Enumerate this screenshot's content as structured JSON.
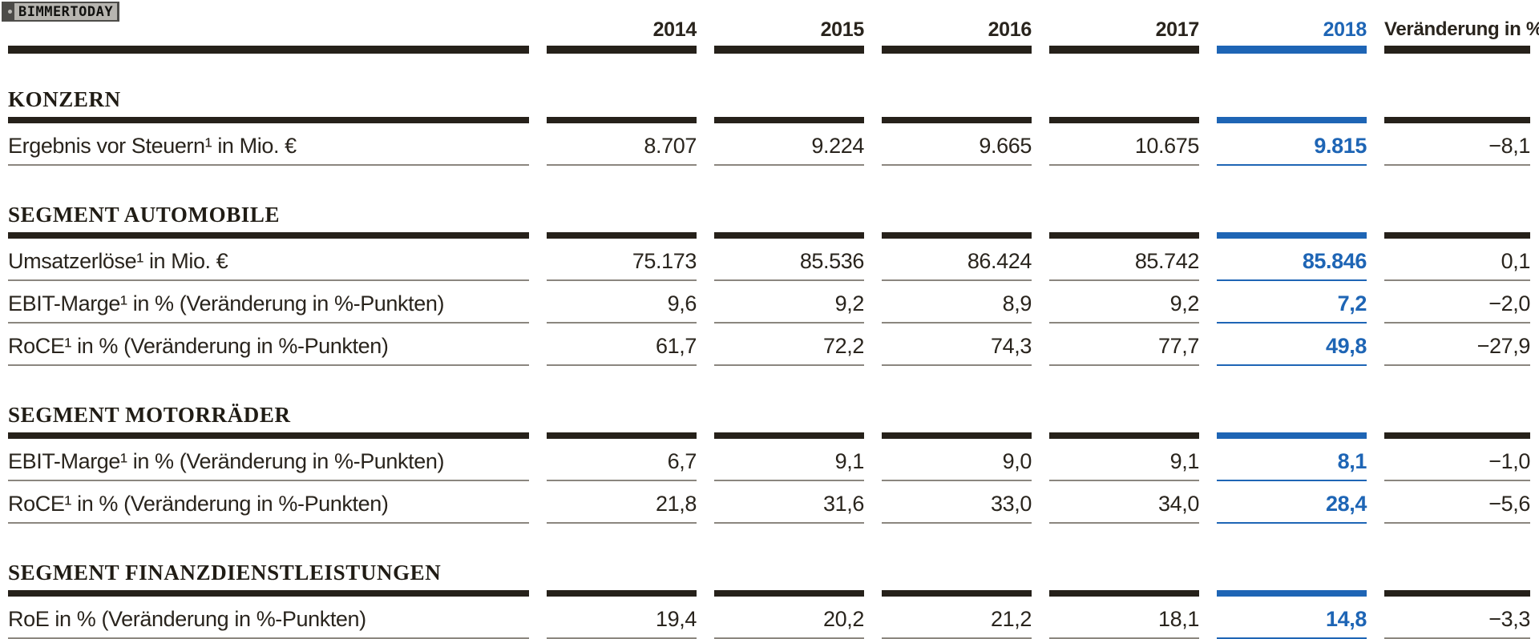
{
  "watermark": {
    "text": "BIMMERTODAY"
  },
  "colors": {
    "accent_blue": "#1e65b5",
    "bar_black": "#26211a",
    "rule_grey": "#8b867f",
    "text_dark": "#29241d"
  },
  "header": {
    "years": [
      "2014",
      "2015",
      "2016",
      "2017",
      "2018"
    ],
    "highlight_year": "2018",
    "change_label": "Veränderung in %"
  },
  "sections": [
    {
      "title": "KONZERN",
      "rows": [
        {
          "label": "Ergebnis vor Steuern¹ in Mio. €",
          "values": [
            "8.707",
            "9.224",
            "9.665",
            "10.675",
            "9.815"
          ],
          "change": "−8,1"
        }
      ]
    },
    {
      "title": "SEGMENT AUTOMOBILE",
      "rows": [
        {
          "label": "Umsatzerlöse¹ in Mio. €",
          "values": [
            "75.173",
            "85.536",
            "86.424",
            "85.742",
            "85.846"
          ],
          "change": "0,1"
        },
        {
          "label": "EBIT-Marge¹ in % (Veränderung in %-Punkten)",
          "values": [
            "9,6",
            "9,2",
            "8,9",
            "9,2",
            "7,2"
          ],
          "change": "−2,0"
        },
        {
          "label": "RoCE¹ in % (Veränderung in %-Punkten)",
          "values": [
            "61,7",
            "72,2",
            "74,3",
            "77,7",
            "49,8"
          ],
          "change": "−27,9"
        }
      ]
    },
    {
      "title": "SEGMENT MOTORRÄDER",
      "rows": [
        {
          "label": "EBIT-Marge¹ in % (Veränderung in %-Punkten)",
          "values": [
            "6,7",
            "9,1",
            "9,0",
            "9,1",
            "8,1"
          ],
          "change": "−1,0"
        },
        {
          "label": "RoCE¹ in % (Veränderung in %-Punkten)",
          "values": [
            "21,8",
            "31,6",
            "33,0",
            "34,0",
            "28,4"
          ],
          "change": "−5,6"
        }
      ]
    },
    {
      "title": "SEGMENT FINANZDIENSTLEISTUNGEN",
      "rows": [
        {
          "label": "RoE in % (Veränderung in %-Punkten)",
          "values": [
            "19,4",
            "20,2",
            "21,2",
            "18,1",
            "14,8"
          ],
          "change": "−3,3"
        }
      ]
    }
  ],
  "chart_data": {
    "type": "table",
    "columns": [
      "",
      "2014",
      "2015",
      "2016",
      "2017",
      "2018",
      "Veränderung in %"
    ],
    "rows": [
      [
        "KONZERN",
        "",
        "",
        "",
        "",
        "",
        ""
      ],
      [
        "Ergebnis vor Steuern¹ in Mio. €",
        "8.707",
        "9.224",
        "9.665",
        "10.675",
        "9.815",
        "−8,1"
      ],
      [
        "SEGMENT AUTOMOBILE",
        "",
        "",
        "",
        "",
        "",
        ""
      ],
      [
        "Umsatzerlöse¹ in Mio. €",
        "75.173",
        "85.536",
        "86.424",
        "85.742",
        "85.846",
        "0,1"
      ],
      [
        "EBIT-Marge¹ in % (Veränderung in %-Punkten)",
        "9,6",
        "9,2",
        "8,9",
        "9,2",
        "7,2",
        "−2,0"
      ],
      [
        "RoCE¹ in % (Veränderung in %-Punkten)",
        "61,7",
        "72,2",
        "74,3",
        "77,7",
        "49,8",
        "−27,9"
      ],
      [
        "SEGMENT MOTORRÄDER",
        "",
        "",
        "",
        "",
        "",
        ""
      ],
      [
        "EBIT-Marge¹ in % (Veränderung in %-Punkten)",
        "6,7",
        "9,1",
        "9,0",
        "9,1",
        "8,1",
        "−1,0"
      ],
      [
        "RoCE¹ in % (Veränderung in %-Punkten)",
        "21,8",
        "31,6",
        "33,0",
        "34,0",
        "28,4",
        "−5,6"
      ],
      [
        "SEGMENT FINANZDIENSTLEISTUNGEN",
        "",
        "",
        "",
        "",
        "",
        ""
      ],
      [
        "RoE in % (Veränderung in %-Punkten)",
        "19,4",
        "20,2",
        "21,2",
        "18,1",
        "14,8",
        "−3,3"
      ]
    ],
    "highlight_column": "2018",
    "layout": {
      "year_columns_right_aligned": true,
      "highlight_color": "#1e65b5"
    }
  }
}
